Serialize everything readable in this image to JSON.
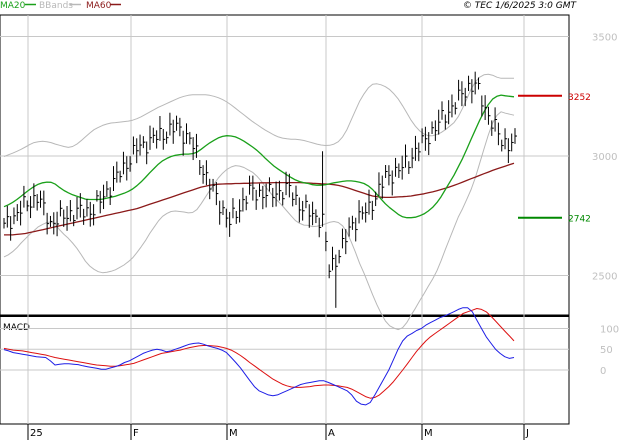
{
  "legend": [
    {
      "label": "MA20",
      "color": "#1aa01a"
    },
    {
      "label": "BBands",
      "color": "#b8b8b8"
    },
    {
      "label": "MA60",
      "color": "#8b1a1a"
    }
  ],
  "copyright": "© TEC 1/6/2025 3:0 GMT",
  "subchart_title": "MACD",
  "colors": {
    "price": "#000000",
    "ma20": "#1aa01a",
    "ma60": "#8b1a1a",
    "bbands": "#b8b8b8",
    "macd": "#1e1ee6",
    "signal": "#dd1111",
    "grid": "#c8c8c8",
    "resistance": "#cc0000",
    "support": "#008800"
  },
  "chart_data": {
    "type": "line",
    "x_labels": [
      "25",
      "F",
      "M",
      "A",
      "M",
      "J"
    ],
    "price_axis": {
      "ticks": [
        2500,
        3000,
        3500
      ],
      "tick_labels": [
        "2500",
        "3000",
        "3500"
      ],
      "range": [
        2335,
        3590
      ]
    },
    "macd_axis": {
      "tick_labels": [
        "100",
        "50",
        "0"
      ],
      "ticks": [
        100,
        50,
        0
      ],
      "range": [
        -130,
        130
      ]
    },
    "levels": [
      {
        "name": "resistance",
        "value": 3252,
        "label": "3252"
      },
      {
        "name": "support",
        "value": 2742,
        "label": "2742"
      }
    ],
    "series": [
      {
        "name": "MA20",
        "values": [
          2788,
          2796,
          2806,
          2818,
          2832,
          2846,
          2860,
          2872,
          2882,
          2888,
          2891,
          2890,
          2882,
          2868,
          2856,
          2846,
          2838,
          2832,
          2826,
          2820,
          2818,
          2818,
          2818,
          2820,
          2824,
          2828,
          2832,
          2838,
          2844,
          2852,
          2862,
          2876,
          2892,
          2910,
          2930,
          2948,
          2966,
          2980,
          2990,
          2998,
          3003,
          3006,
          3008,
          3008,
          3010,
          3016,
          3028,
          3042,
          3055,
          3066,
          3076,
          3082,
          3085,
          3084,
          3080,
          3072,
          3062,
          3050,
          3038,
          3024,
          3008,
          2990,
          2974,
          2958,
          2945,
          2933,
          2921,
          2910,
          2900,
          2893,
          2888,
          2885,
          2880,
          2878,
          2878,
          2880,
          2884,
          2888,
          2891,
          2894,
          2896,
          2896,
          2894,
          2890,
          2885,
          2875,
          2860,
          2840,
          2820,
          2800,
          2784,
          2770,
          2756,
          2746,
          2742,
          2742,
          2744,
          2750,
          2758,
          2770,
          2785,
          2805,
          2830,
          2860,
          2890,
          2920,
          2955,
          2990,
          3030,
          3070,
          3110,
          3150,
          3185,
          3215,
          3238,
          3250,
          3255,
          3252,
          3250,
          3248
        ]
      },
      {
        "name": "BBands upper",
        "values": [
          2998,
          3005,
          3012,
          3020,
          3028,
          3038,
          3048,
          3056,
          3060,
          3062,
          3060,
          3056,
          3050,
          3045,
          3040,
          3036,
          3040,
          3050,
          3064,
          3080,
          3096,
          3110,
          3120,
          3128,
          3134,
          3138,
          3140,
          3142,
          3144,
          3146,
          3150,
          3156,
          3164,
          3174,
          3184,
          3194,
          3204,
          3212,
          3220,
          3228,
          3236,
          3244,
          3250,
          3254,
          3256,
          3256,
          3256,
          3256,
          3254,
          3250,
          3244,
          3236,
          3226,
          3214,
          3200,
          3186,
          3172,
          3158,
          3144,
          3132,
          3120,
          3108,
          3098,
          3088,
          3080,
          3075,
          3072,
          3070,
          3070,
          3068,
          3065,
          3060,
          3055,
          3050,
          3046,
          3044,
          3045,
          3050,
          3060,
          3080,
          3110,
          3150,
          3190,
          3230,
          3260,
          3285,
          3300,
          3302,
          3298,
          3290,
          3278,
          3260,
          3238,
          3210,
          3180,
          3150,
          3125,
          3105,
          3092,
          3085,
          3085,
          3090,
          3098,
          3110,
          3125,
          3140,
          3165,
          3200,
          3240,
          3280,
          3310,
          3330,
          3340,
          3342,
          3338,
          3330,
          3325,
          3325,
          3325,
          3325
        ]
      },
      {
        "name": "BBands lower",
        "values": [
          2578,
          2587,
          2600,
          2616,
          2636,
          2654,
          2672,
          2688,
          2704,
          2714,
          2722,
          2724,
          2714,
          2691,
          2672,
          2656,
          2636,
          2614,
          2588,
          2560,
          2540,
          2526,
          2516,
          2512,
          2514,
          2518,
          2524,
          2534,
          2544,
          2558,
          2574,
          2596,
          2620,
          2646,
          2676,
          2702,
          2728,
          2748,
          2760,
          2768,
          2770,
          2768,
          2766,
          2762,
          2764,
          2776,
          2800,
          2828,
          2856,
          2882,
          2908,
          2928,
          2944,
          2954,
          2960,
          2958,
          2952,
          2942,
          2932,
          2916,
          2896,
          2872,
          2850,
          2828,
          2810,
          2791,
          2770,
          2750,
          2730,
          2718,
          2711,
          2710,
          2705,
          2706,
          2710,
          2716,
          2723,
          2726,
          2722,
          2708,
          2682,
          2642,
          2598,
          2550,
          2510,
          2465,
          2420,
          2378,
          2342,
          2310,
          2290,
          2280,
          2274,
          2282,
          2304,
          2334,
          2363,
          2395,
          2424,
          2455,
          2485,
          2520,
          2562,
          2610,
          2655,
          2700,
          2745,
          2780,
          2820,
          2860,
          2910,
          2970,
          3030,
          3088,
          3138,
          3170,
          3185,
          3179,
          3175,
          3171
        ]
      },
      {
        "name": "MA60",
        "values": [
          2670,
          2670,
          2670,
          2672,
          2674,
          2676,
          2680,
          2684,
          2688,
          2692,
          2696,
          2700,
          2704,
          2708,
          2712,
          2716,
          2720,
          2724,
          2728,
          2732,
          2736,
          2740,
          2744,
          2748,
          2752,
          2756,
          2760,
          2764,
          2768,
          2772,
          2776,
          2780,
          2786,
          2792,
          2798,
          2804,
          2810,
          2816,
          2822,
          2828,
          2834,
          2840,
          2846,
          2852,
          2858,
          2864,
          2870,
          2874,
          2878,
          2880,
          2882,
          2883,
          2884,
          2884,
          2885,
          2885,
          2886,
          2886,
          2887,
          2887,
          2888,
          2888,
          2888,
          2889,
          2889,
          2889,
          2889,
          2889,
          2889,
          2889,
          2888,
          2887,
          2886,
          2885,
          2884,
          2883,
          2882,
          2880,
          2877,
          2873,
          2868,
          2862,
          2856,
          2850,
          2844,
          2838,
          2833,
          2830,
          2828,
          2827,
          2827,
          2828,
          2829,
          2830,
          2831,
          2833,
          2836,
          2839,
          2842,
          2846,
          2850,
          2855,
          2860,
          2865,
          2871,
          2877,
          2884,
          2891,
          2898,
          2905,
          2912,
          2919,
          2926,
          2933,
          2940,
          2946,
          2952,
          2958,
          2964,
          2970
        ]
      },
      {
        "name": "MACD",
        "values": [
          49,
          46,
          42,
          40,
          38,
          36,
          34,
          32,
          31,
          30,
          22,
          12,
          14,
          15,
          15,
          14,
          13,
          10,
          8,
          6,
          4,
          2,
          2,
          5,
          8,
          12,
          18,
          22,
          28,
          34,
          40,
          44,
          48,
          50,
          48,
          44,
          46,
          50,
          54,
          58,
          62,
          64,
          65,
          62,
          58,
          55,
          52,
          48,
          42,
          30,
          18,
          5,
          -10,
          -25,
          -40,
          -50,
          -55,
          -60,
          -62,
          -60,
          -55,
          -50,
          -45,
          -40,
          -35,
          -32,
          -30,
          -28,
          -26,
          -26,
          -30,
          -35,
          -40,
          -45,
          -50,
          -60,
          -75,
          -82,
          -84,
          -78,
          -60,
          -40,
          -20,
          0,
          25,
          50,
          70,
          82,
          88,
          95,
          100,
          108,
          114,
          120,
          126,
          130,
          135,
          140,
          146,
          150,
          150,
          140,
          120,
          100,
          80,
          65,
          50,
          40,
          32,
          28,
          30
        ]
      },
      {
        "name": "Signal",
        "values": [
          52,
          50,
          48,
          47,
          46,
          44,
          42,
          40,
          38,
          36,
          33,
          30,
          28,
          26,
          24,
          22,
          20,
          18,
          16,
          14,
          12,
          11,
          10,
          9,
          9,
          10,
          12,
          14,
          16,
          20,
          24,
          28,
          32,
          36,
          40,
          42,
          44,
          46,
          48,
          51,
          54,
          56,
          58,
          59,
          59,
          58,
          57,
          55,
          52,
          48,
          42,
          35,
          27,
          18,
          10,
          2,
          -6,
          -14,
          -22,
          -28,
          -34,
          -38,
          -41,
          -42,
          -42,
          -41,
          -40,
          -38,
          -37,
          -36,
          -36,
          -37,
          -38,
          -40,
          -42,
          -46,
          -52,
          -58,
          -64,
          -68,
          -66,
          -60,
          -50,
          -40,
          -28,
          -14,
          0,
          15,
          30,
          45,
          58,
          70,
          80,
          88,
          96,
          104,
          112,
          120,
          128,
          136,
          140,
          144,
          148,
          146,
          140,
          130,
          118,
          106,
          94,
          82,
          70
        ]
      }
    ]
  }
}
